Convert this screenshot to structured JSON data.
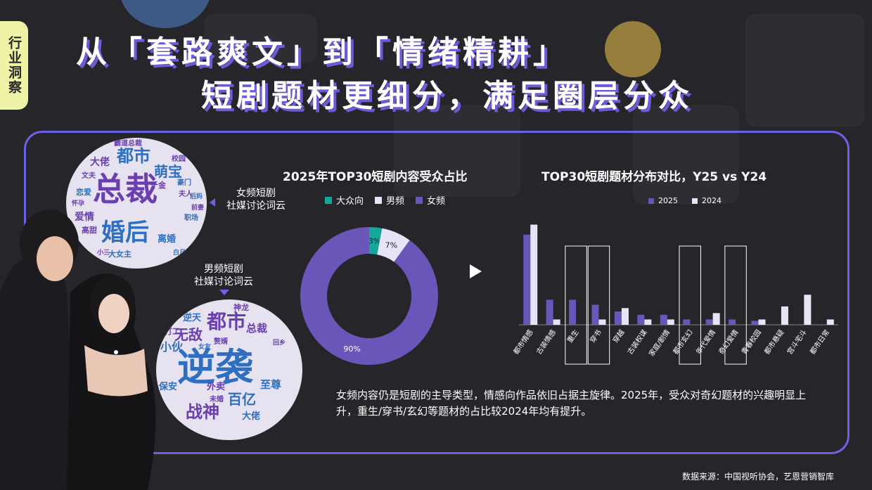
{
  "tag": {
    "label": "行业洞察"
  },
  "title": {
    "line1": "从「套路爽文」到「情绪精耕」",
    "line2": "短剧题材更细分，满足圈层分众"
  },
  "wordclouds": {
    "female": {
      "label_line1": "女频短剧",
      "label_line2": "社媒讨论词云",
      "words": [
        "总裁",
        "婚后",
        "都市",
        "萌宝",
        "大佬",
        "爱情",
        "离婚",
        "霸道总裁",
        "千金",
        "职场",
        "大女主",
        "校园",
        "豪门",
        "恋爱",
        "高甜",
        "文夫",
        "夫人",
        "后妈",
        "前妻",
        "怀孕",
        "白月光",
        "小三"
      ]
    },
    "male": {
      "label_line1": "男频短剧",
      "label_line2": "社媒讨论词云",
      "words": [
        "逆袭",
        "都市",
        "战神",
        "百亿",
        "总裁",
        "无敌",
        "至尊",
        "外卖",
        "大佬",
        "小伙",
        "逆天",
        "保安",
        "打工",
        "赘婿",
        "神龙",
        "未婚",
        "女友",
        "回乡"
      ]
    }
  },
  "chart_data": [
    {
      "type": "pie",
      "title": "2025年TOP30短剧内容受众占比",
      "legend_placement": "top",
      "labels": [
        "大众向",
        "男频",
        "女频"
      ],
      "values": [
        3,
        7,
        90
      ],
      "value_labels": [
        "3%",
        "7%",
        "90%"
      ],
      "colors": [
        "#14a89c",
        "#e6e4f7",
        "#6a56b8"
      ]
    },
    {
      "type": "bar",
      "title": "TOP30短剧题材分布对比，Y25 vs Y24",
      "legend_placement": "top",
      "categories": [
        "都市情感",
        "古装情感",
        "重生",
        "穿书",
        "穿越",
        "古装权谋",
        "家庭/剧情",
        "都市玄幻",
        "年代爱情",
        "奇幻爱情",
        "青春校园",
        "都市悬疑",
        "宫斗宅斗",
        "都市日常"
      ],
      "series": [
        {
          "name": "2025",
          "color": "#6a56b8",
          "values": [
            27,
            7.5,
            7.5,
            6,
            4,
            3,
            3,
            1.6,
            1.6,
            1.6,
            1.2,
            0,
            0,
            0
          ]
        },
        {
          "name": "2024",
          "color": "#e6e4f7",
          "values": [
            30,
            1.6,
            0,
            1.6,
            5,
            1.6,
            1.6,
            0,
            3.5,
            0,
            1.6,
            5.5,
            9,
            1.6
          ]
        }
      ],
      "ylim": [
        0,
        32
      ],
      "grid": false,
      "highlighted_categories": [
        "重生",
        "穿书",
        "都市玄幻",
        "奇幻爱情"
      ]
    }
  ],
  "description": "女频内容仍是短剧的主导类型，情感向作品依旧占据主旋律。2025年，受众对奇幻题材的兴趣明显上升，重生/穿书/玄幻等题材的占比较2024年均有提升。",
  "source": "数据来源：中国视听协会，艺恩营销智库",
  "colors": {
    "accent": "#6d62e6",
    "purple": "#6a56b8",
    "lavender": "#e6e4f7",
    "teal": "#14a89c",
    "tag_bg": "#eef3a6"
  }
}
